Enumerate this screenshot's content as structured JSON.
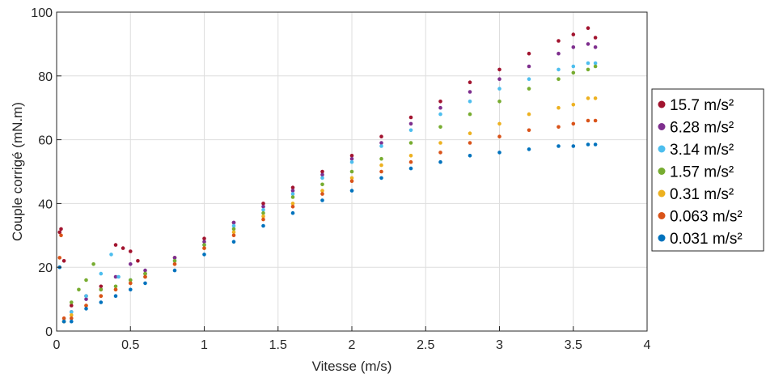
{
  "chart_data": {
    "type": "scatter",
    "title": "",
    "xlabel": "Vitesse  (m/s)",
    "ylabel": "Couple corrigé (mN.m)",
    "xlim": [
      0,
      4
    ],
    "ylim": [
      0,
      100
    ],
    "xticks": [
      "0",
      "0.5",
      "1",
      "1.5",
      "2",
      "2.5",
      "3",
      "3.5",
      "4"
    ],
    "yticks": [
      "0",
      "20",
      "40",
      "60",
      "80",
      "100"
    ],
    "grid": true,
    "legend_position": "right",
    "series": [
      {
        "name": "15.7 m/s²",
        "color": "#A2142F",
        "points": [
          [
            0.02,
            31
          ],
          [
            0.03,
            32
          ],
          [
            0.05,
            22
          ],
          [
            0.1,
            8
          ],
          [
            0.2,
            11
          ],
          [
            0.3,
            14
          ],
          [
            0.4,
            27
          ],
          [
            0.45,
            26
          ],
          [
            0.5,
            25
          ],
          [
            0.55,
            22
          ],
          [
            0.6,
            18
          ],
          [
            0.8,
            23
          ],
          [
            1.0,
            29
          ],
          [
            1.2,
            34
          ],
          [
            1.4,
            40
          ],
          [
            1.6,
            45
          ],
          [
            1.8,
            50
          ],
          [
            2.0,
            55
          ],
          [
            2.2,
            61
          ],
          [
            2.4,
            67
          ],
          [
            2.6,
            72
          ],
          [
            2.8,
            78
          ],
          [
            3.0,
            82
          ],
          [
            3.2,
            87
          ],
          [
            3.4,
            91
          ],
          [
            3.5,
            93
          ],
          [
            3.6,
            95
          ],
          [
            3.65,
            92
          ]
        ]
      },
      {
        "name": "6.28 m/s²",
        "color": "#7E2F8E",
        "points": [
          [
            0.05,
            3
          ],
          [
            0.1,
            6
          ],
          [
            0.2,
            10
          ],
          [
            0.3,
            13
          ],
          [
            0.4,
            17
          ],
          [
            0.5,
            21
          ],
          [
            0.6,
            19
          ],
          [
            0.8,
            23
          ],
          [
            1.0,
            28
          ],
          [
            1.2,
            34
          ],
          [
            1.4,
            39
          ],
          [
            1.6,
            44
          ],
          [
            1.8,
            49
          ],
          [
            2.0,
            54
          ],
          [
            2.2,
            59
          ],
          [
            2.4,
            65
          ],
          [
            2.6,
            70
          ],
          [
            2.8,
            75
          ],
          [
            3.0,
            79
          ],
          [
            3.2,
            83
          ],
          [
            3.4,
            87
          ],
          [
            3.5,
            89
          ],
          [
            3.6,
            90
          ],
          [
            3.65,
            89
          ]
        ]
      },
      {
        "name": "3.14 m/s²",
        "color": "#4DBEEE",
        "points": [
          [
            0.05,
            3
          ],
          [
            0.1,
            6
          ],
          [
            0.2,
            11
          ],
          [
            0.3,
            18
          ],
          [
            0.37,
            24
          ],
          [
            0.42,
            17
          ],
          [
            0.5,
            16
          ],
          [
            0.6,
            17
          ],
          [
            0.8,
            22
          ],
          [
            1.0,
            27
          ],
          [
            1.2,
            33
          ],
          [
            1.4,
            38
          ],
          [
            1.6,
            43
          ],
          [
            1.8,
            48
          ],
          [
            2.0,
            53
          ],
          [
            2.2,
            58
          ],
          [
            2.4,
            63
          ],
          [
            2.6,
            68
          ],
          [
            2.8,
            72
          ],
          [
            3.0,
            76
          ],
          [
            3.2,
            79
          ],
          [
            3.4,
            82
          ],
          [
            3.5,
            83
          ],
          [
            3.6,
            84
          ],
          [
            3.65,
            84
          ]
        ]
      },
      {
        "name": "1.57 m/s²",
        "color": "#77AC30",
        "points": [
          [
            0.05,
            3
          ],
          [
            0.1,
            9
          ],
          [
            0.15,
            13
          ],
          [
            0.2,
            16
          ],
          [
            0.25,
            21
          ],
          [
            0.3,
            13
          ],
          [
            0.4,
            14
          ],
          [
            0.5,
            16
          ],
          [
            0.6,
            18
          ],
          [
            0.8,
            22
          ],
          [
            1.0,
            27
          ],
          [
            1.2,
            32
          ],
          [
            1.4,
            37
          ],
          [
            1.6,
            42
          ],
          [
            1.8,
            46
          ],
          [
            2.0,
            50
          ],
          [
            2.2,
            54
          ],
          [
            2.4,
            59
          ],
          [
            2.6,
            64
          ],
          [
            2.8,
            68
          ],
          [
            3.0,
            72
          ],
          [
            3.2,
            76
          ],
          [
            3.4,
            79
          ],
          [
            3.5,
            81
          ],
          [
            3.6,
            82
          ],
          [
            3.65,
            83
          ]
        ]
      },
      {
        "name": "0.31 m/s²",
        "color": "#EDB120",
        "points": [
          [
            0.05,
            3
          ],
          [
            0.1,
            5
          ],
          [
            0.2,
            8
          ],
          [
            0.3,
            11
          ],
          [
            0.4,
            13
          ],
          [
            0.5,
            15
          ],
          [
            0.6,
            17
          ],
          [
            0.8,
            21
          ],
          [
            1.0,
            26
          ],
          [
            1.2,
            31
          ],
          [
            1.4,
            36
          ],
          [
            1.6,
            40
          ],
          [
            1.8,
            44
          ],
          [
            2.0,
            48
          ],
          [
            2.2,
            52
          ],
          [
            2.4,
            55
          ],
          [
            2.6,
            59
          ],
          [
            2.8,
            62
          ],
          [
            3.0,
            65
          ],
          [
            3.2,
            68
          ],
          [
            3.4,
            70
          ],
          [
            3.5,
            71
          ],
          [
            3.6,
            73
          ],
          [
            3.65,
            73
          ]
        ]
      },
      {
        "name": "0.063 m/s²",
        "color": "#D95319",
        "points": [
          [
            0.02,
            23
          ],
          [
            0.03,
            30
          ],
          [
            0.05,
            4
          ],
          [
            0.1,
            4
          ],
          [
            0.2,
            8
          ],
          [
            0.3,
            11
          ],
          [
            0.4,
            13
          ],
          [
            0.5,
            15
          ],
          [
            0.6,
            17
          ],
          [
            0.8,
            21
          ],
          [
            1.0,
            26
          ],
          [
            1.2,
            30
          ],
          [
            1.4,
            35
          ],
          [
            1.6,
            39
          ],
          [
            1.8,
            43
          ],
          [
            2.0,
            47
          ],
          [
            2.2,
            50
          ],
          [
            2.4,
            53
          ],
          [
            2.6,
            56
          ],
          [
            2.8,
            59
          ],
          [
            3.0,
            61
          ],
          [
            3.2,
            63
          ],
          [
            3.4,
            64
          ],
          [
            3.5,
            65
          ],
          [
            3.6,
            66
          ],
          [
            3.65,
            66
          ]
        ]
      },
      {
        "name": "0.031 m/s²",
        "color": "#0072BD",
        "points": [
          [
            0.02,
            20
          ],
          [
            0.05,
            3
          ],
          [
            0.1,
            3
          ],
          [
            0.2,
            7
          ],
          [
            0.3,
            9
          ],
          [
            0.4,
            11
          ],
          [
            0.5,
            13
          ],
          [
            0.6,
            15
          ],
          [
            0.8,
            19
          ],
          [
            1.0,
            24
          ],
          [
            1.2,
            28
          ],
          [
            1.4,
            33
          ],
          [
            1.6,
            37
          ],
          [
            1.8,
            41
          ],
          [
            2.0,
            44
          ],
          [
            2.2,
            48
          ],
          [
            2.4,
            51
          ],
          [
            2.6,
            53
          ],
          [
            2.8,
            55
          ],
          [
            3.0,
            56
          ],
          [
            3.2,
            57
          ],
          [
            3.4,
            58
          ],
          [
            3.5,
            58
          ],
          [
            3.6,
            58.5
          ],
          [
            3.65,
            58.5
          ]
        ]
      }
    ]
  }
}
